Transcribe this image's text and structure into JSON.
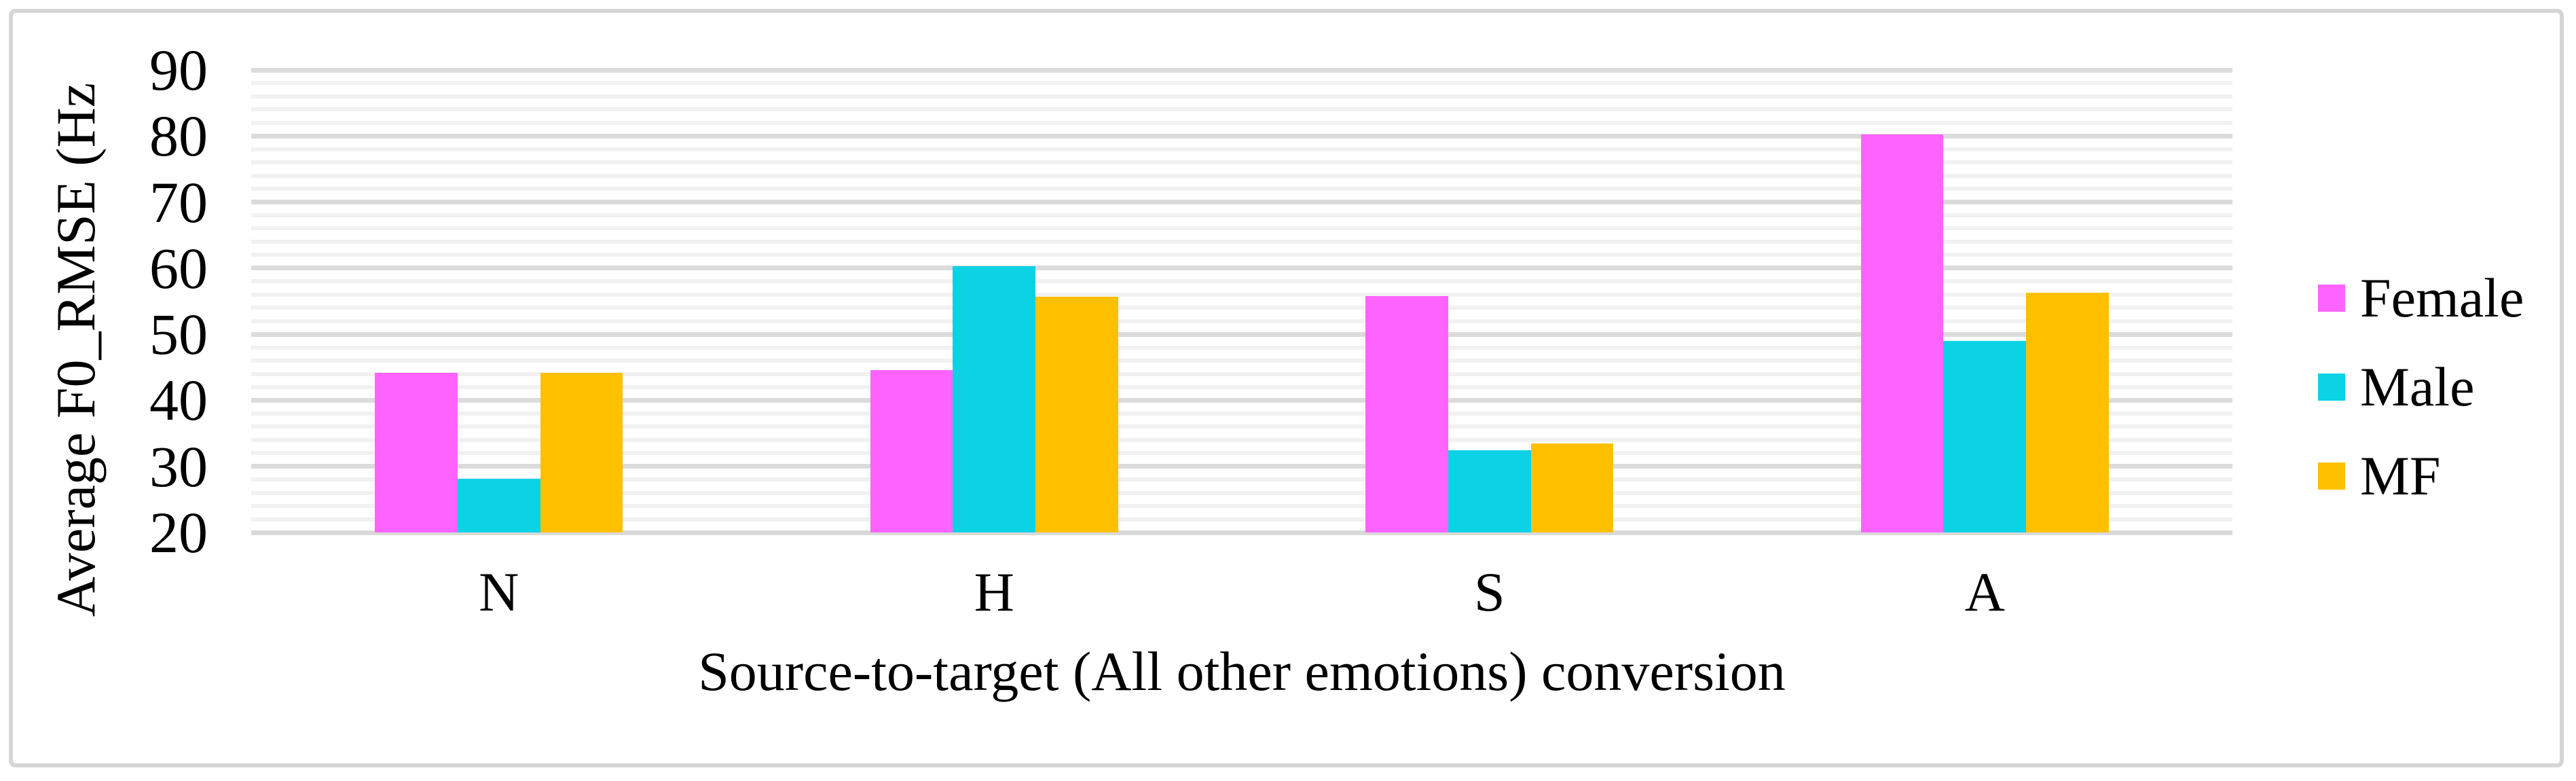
{
  "chart_data": {
    "type": "bar",
    "title": "",
    "xlabel": "Source-to-target (All other emotions) conversion",
    "ylabel": "Average F0_RMSE (Hz",
    "categories": [
      "N",
      "H",
      "S",
      "A"
    ],
    "series": [
      {
        "name": "Female",
        "color": "#ff63ff",
        "values": [
          44.2,
          44.6,
          55.8,
          80.2
        ]
      },
      {
        "name": "Male",
        "color": "#0cd2e6",
        "values": [
          28.1,
          60.3,
          32.4,
          49.0
        ]
      },
      {
        "name": "MF",
        "color": "#ffc000",
        "values": [
          44.2,
          55.7,
          33.5,
          56.3
        ]
      }
    ],
    "ylim": [
      20,
      90
    ],
    "y_major_ticks": [
      20,
      30,
      40,
      50,
      60,
      70,
      80,
      90
    ],
    "y_minor_step": 2,
    "grid": "horizontal",
    "legend_position": "right",
    "legend_labels": [
      "Female",
      "Male",
      "MF"
    ],
    "colors": {
      "grid_major": "#dbdbdb",
      "grid_minor": "#f1f1f1",
      "axis_baseline": "#d9d9d9",
      "frame_border": "#d5d5d5",
      "text": "#000000"
    }
  }
}
